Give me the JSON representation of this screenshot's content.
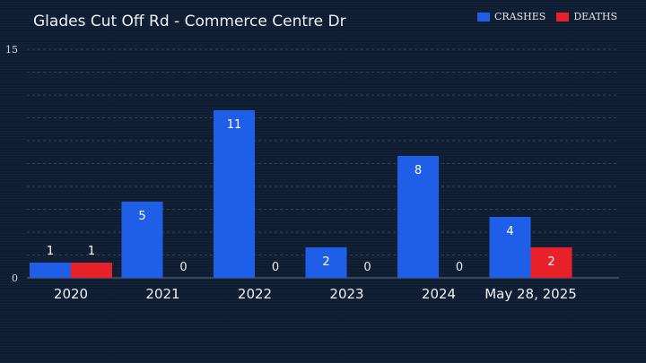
{
  "chart_data": {
    "type": "bar",
    "title": "Glades Cut Off Rd - Commerce Centre Dr",
    "categories": [
      "2020",
      "2021",
      "2022",
      "2023",
      "2024",
      "May 28, 2025"
    ],
    "series": [
      {
        "name": "CRASHES",
        "values": [
          1,
          5,
          11,
          2,
          8,
          4
        ],
        "color": "#1f5fe8"
      },
      {
        "name": "DEATHS",
        "values": [
          1,
          0,
          0,
          0,
          0,
          2
        ],
        "color": "#e8202a"
      }
    ],
    "y_ticks": [
      "0",
      "15"
    ],
    "ylim": [
      0,
      15
    ],
    "grid": true,
    "legend_position": "top-right"
  }
}
